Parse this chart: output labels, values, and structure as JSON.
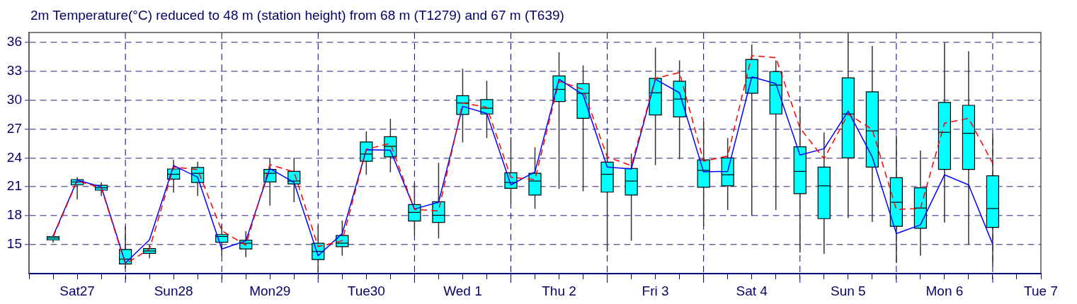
{
  "chart_data": {
    "type": "box",
    "title": "2m Temperature(°C) reduced to 48 m (station height) from 68 m (T1279) and 67 m (T639)",
    "categories": [
      null,
      null,
      "Sat27",
      null,
      null,
      null,
      "Sun28",
      null,
      null,
      null,
      "Mon29",
      null,
      null,
      null,
      "Tue30",
      null,
      null,
      null,
      "Wed 1",
      null,
      null,
      null,
      "Thu 2",
      null,
      null,
      null,
      "Fri 3",
      null,
      null,
      null,
      "Sat 4",
      null,
      null,
      null,
      "Sun 5",
      null,
      null,
      null,
      "Mon 6",
      null,
      null,
      null,
      "Tue 7"
    ],
    "ylim": [
      12,
      37
    ],
    "yticks": [
      15,
      18,
      21,
      24,
      27,
      30,
      33,
      36
    ],
    "grid": true,
    "legend": false,
    "line_style": "dashed",
    "series": [
      {
        "color": "#00ffff",
        "boxes": [
          null,
          {
            "low": 15.2,
            "q1": 15.5,
            "median": 15.7,
            "q3": 15.85,
            "high": 16.0
          },
          {
            "low": 19.7,
            "q1": 21.2,
            "median": 21.5,
            "q3": 21.75,
            "high": 22.0
          },
          {
            "low": 20.05,
            "q1": 20.65,
            "median": 20.9,
            "q3": 21.15,
            "high": 21.45
          },
          {
            "low": 12.5,
            "q1": 13.0,
            "median": 13.5,
            "q3": 14.5,
            "high": 16.9
          },
          {
            "low": 13.6,
            "q1": 14.1,
            "median": 14.35,
            "q3": 14.6,
            "high": 15.0
          },
          {
            "low": 20.4,
            "q1": 21.8,
            "median": 22.3,
            "q3": 22.85,
            "high": 23.8
          },
          {
            "low": 20.05,
            "q1": 21.45,
            "median": 22.4,
            "q3": 23.0,
            "high": 23.6
          },
          {
            "low": 13.85,
            "q1": 15.25,
            "median": 15.85,
            "q3": 16.05,
            "high": 17.05
          },
          {
            "low": 13.7,
            "q1": 14.55,
            "median": 15.15,
            "q3": 15.45,
            "high": 16.4
          },
          {
            "low": 19.05,
            "q1": 21.5,
            "median": 22.4,
            "q3": 22.8,
            "high": 24.0
          },
          {
            "low": 19.4,
            "q1": 21.3,
            "median": 21.6,
            "q3": 22.6,
            "high": 24.0
          },
          {
            "low": 12.1,
            "q1": 13.45,
            "median": 14.3,
            "q3": 15.15,
            "high": 17.0
          },
          {
            "low": 13.85,
            "q1": 14.8,
            "median": 15.15,
            "q3": 15.95,
            "high": 17.5
          },
          {
            "low": 22.25,
            "q1": 23.65,
            "median": 24.4,
            "q3": 25.65,
            "high": 26.75
          },
          {
            "low": 22.5,
            "q1": 24.1,
            "median": 25.2,
            "q3": 26.2,
            "high": 28.05
          },
          {
            "low": 16.0,
            "q1": 17.45,
            "median": 18.35,
            "q3": 19.15,
            "high": 21.4
          },
          {
            "low": 15.65,
            "q1": 17.3,
            "median": 18.05,
            "q3": 19.45,
            "high": 23.5
          },
          {
            "low": 25.6,
            "q1": 28.5,
            "median": 29.7,
            "q3": 30.45,
            "high": 33.25
          },
          {
            "low": 26.05,
            "q1": 28.55,
            "median": 29.15,
            "q3": 30.05,
            "high": 32.0
          },
          {
            "low": 19.3,
            "q1": 20.85,
            "median": 21.45,
            "q3": 22.45,
            "high": 26.15
          },
          {
            "low": 18.7,
            "q1": 20.15,
            "median": 21.6,
            "q3": 22.4,
            "high": 25.1
          },
          {
            "low": 20.8,
            "q1": 29.85,
            "median": 31.1,
            "q3": 32.5,
            "high": 34.95
          },
          {
            "low": 20.55,
            "q1": 28.1,
            "median": 30.7,
            "q3": 31.7,
            "high": 33.6
          },
          {
            "low": 14.3,
            "q1": 20.45,
            "median": 22.3,
            "q3": 23.55,
            "high": 25.85
          },
          {
            "low": 15.4,
            "q1": 20.15,
            "median": 21.6,
            "q3": 22.9,
            "high": 24.45
          },
          {
            "low": 23.25,
            "q1": 28.45,
            "median": 30.75,
            "q3": 32.25,
            "high": 35.45
          },
          {
            "low": 23.85,
            "q1": 28.25,
            "median": 30.1,
            "q3": 31.95,
            "high": 34.1
          },
          {
            "low": 16.9,
            "q1": 20.95,
            "median": 22.7,
            "q3": 23.8,
            "high": 27.75
          },
          {
            "low": 18.6,
            "q1": 21.1,
            "median": 22.25,
            "q3": 24.0,
            "high": 26.05
          },
          {
            "low": 18.0,
            "q1": 30.7,
            "median": 32.3,
            "q3": 34.2,
            "high": 35.75
          },
          {
            "low": 18.6,
            "q1": 28.55,
            "median": 31.55,
            "q3": 32.95,
            "high": 34.1
          },
          {
            "low": 14.2,
            "q1": 20.3,
            "median": 22.6,
            "q3": 25.15,
            "high": 29.35
          },
          {
            "low": 14.05,
            "q1": 17.7,
            "median": 21.1,
            "q3": 23.05,
            "high": 26.65
          },
          {
            "low": 17.75,
            "q1": 24.0,
            "median": 28.55,
            "q3": 32.3,
            "high": 37.0
          },
          {
            "low": 17.35,
            "q1": 23.05,
            "median": 26.8,
            "q3": 30.85,
            "high": 35.6
          },
          {
            "low": 13.1,
            "q1": 16.9,
            "median": 19.4,
            "q3": 21.95,
            "high": 26.35
          },
          {
            "low": 13.85,
            "q1": 16.7,
            "median": 18.8,
            "q3": 20.9,
            "high": 24.75
          },
          {
            "low": 17.3,
            "q1": 22.8,
            "median": 26.65,
            "q3": 29.75,
            "high": 35.95
          },
          {
            "low": 15.0,
            "q1": 22.8,
            "median": 26.55,
            "q3": 29.45,
            "high": 35.05
          },
          {
            "low": 12.75,
            "q1": 16.8,
            "median": 18.75,
            "q3": 22.15,
            "high": 26.5
          },
          null,
          null
        ]
      },
      {
        "type": "line",
        "color": "#ff0000",
        "values": [
          null,
          15.8,
          21.6,
          20.9,
          13.0,
          14.55,
          23.05,
          22.8,
          16.45,
          14.95,
          23.3,
          22.55,
          14.8,
          15.4,
          24.9,
          25.5,
          18.65,
          18.5,
          29.7,
          29.25,
          22.0,
          21.75,
          31.95,
          31.1,
          24.1,
          23.2,
          32.25,
          32.85,
          23.65,
          24.2,
          34.6,
          34.4,
          27.1,
          23.9,
          28.55,
          26.95,
          18.65,
          18.75,
          27.6,
          28.1,
          23.45,
          null,
          null
        ]
      },
      {
        "type": "line",
        "color": "#0000ff",
        "line_style": "solid",
        "values": [
          null,
          15.9,
          21.7,
          21.0,
          13.1,
          15.5,
          23.2,
          22.0,
          14.55,
          15.4,
          22.9,
          21.45,
          13.85,
          16.15,
          24.85,
          24.8,
          18.7,
          19.4,
          29.35,
          28.6,
          21.2,
          22.55,
          32.15,
          30.55,
          23.05,
          22.85,
          32.15,
          30.75,
          22.55,
          22.6,
          32.4,
          31.7,
          24.3,
          24.95,
          28.85,
          24.1,
          16.15,
          17.05,
          22.25,
          21.2,
          15.05,
          null,
          null
        ]
      }
    ]
  }
}
